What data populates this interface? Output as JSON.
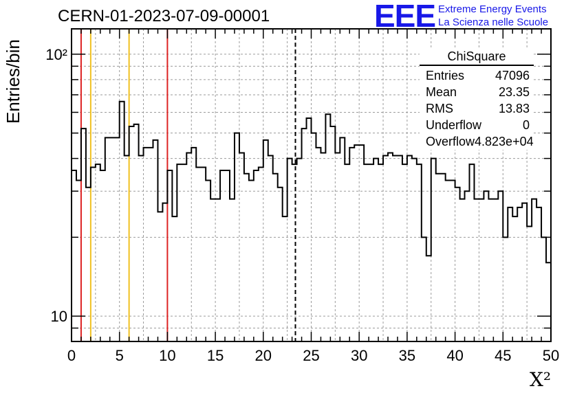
{
  "title": "CERN-01-2023-07-09-00001",
  "logo": {
    "mark": "EEE",
    "line1": "Extreme Energy Events",
    "line2": "La Scienza nelle Scuole",
    "color": "#1818e8"
  },
  "stats_box": {
    "name": "ChiSquare",
    "rows": [
      {
        "label": "Entries",
        "value": "47096"
      },
      {
        "label": "Mean",
        "value": "23.35"
      },
      {
        "label": "RMS",
        "value": "13.83"
      },
      {
        "label": "Underflow",
        "value": "0"
      },
      {
        "label": "Overflow",
        "value": "4.823e+04"
      }
    ]
  },
  "chart_data": {
    "type": "histogram",
    "xlabel": "X²",
    "ylabel": "Entries/bin",
    "xlim": [
      0,
      50
    ],
    "ylim": [
      8,
      125
    ],
    "y_scale": "log",
    "x_ticks": [
      0,
      5,
      10,
      15,
      20,
      25,
      30,
      35,
      40,
      45,
      50
    ],
    "y_tick_labels": [
      {
        "value": 10,
        "label": "10"
      },
      {
        "value": 100,
        "label": "10²"
      }
    ],
    "grid": true,
    "bin_width": 0.5,
    "values": [
      36,
      33,
      52,
      31,
      37,
      38,
      36,
      48,
      48,
      48,
      66,
      41,
      53,
      54,
      41,
      44,
      44,
      47,
      25,
      27,
      36,
      24,
      38,
      38,
      42,
      44,
      37,
      37,
      33,
      28,
      28,
      36,
      36,
      28,
      50,
      42,
      35,
      33,
      36,
      37,
      47,
      41,
      35,
      31,
      24,
      40,
      38,
      40,
      52,
      57,
      50,
      44,
      42,
      59,
      53,
      42,
      48,
      38,
      44,
      45,
      45,
      38,
      38,
      40,
      38,
      41,
      42,
      41,
      41,
      38,
      41,
      40,
      38,
      20,
      17,
      40,
      35,
      35,
      33,
      33,
      31,
      28,
      30,
      38,
      28,
      28,
      30,
      28,
      28,
      30,
      20,
      26,
      24,
      26,
      27,
      22,
      28,
      26,
      20,
      16
    ],
    "series_color": "#000000",
    "vertical_lines": [
      {
        "x": 1,
        "color": "#dd2222",
        "style": "solid"
      },
      {
        "x": 2,
        "color": "#f0c020",
        "style": "solid"
      },
      {
        "x": 6,
        "color": "#f0c020",
        "style": "solid"
      },
      {
        "x": 10,
        "color": "#dd2222",
        "style": "solid"
      },
      {
        "x": 23.35,
        "color": "#000000",
        "style": "dashed"
      }
    ]
  }
}
